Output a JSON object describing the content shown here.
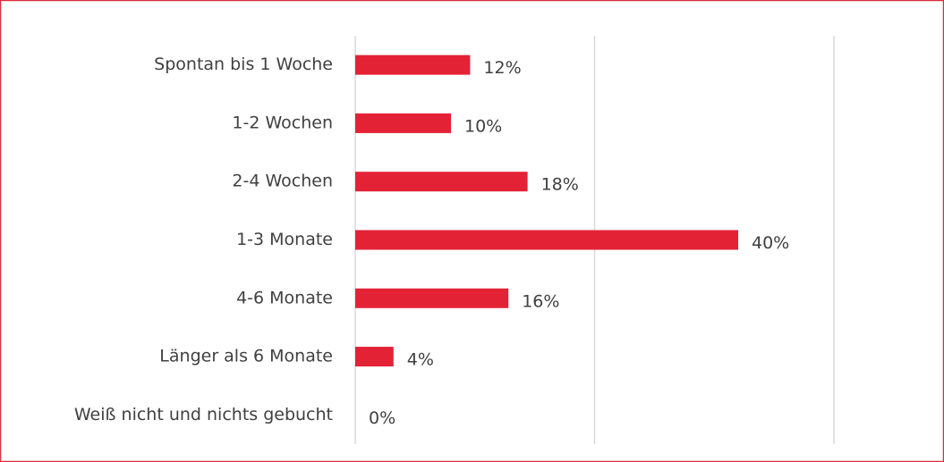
{
  "chart_data": {
    "type": "bar",
    "orientation": "horizontal",
    "categories": [
      "Spontan bis 1 Woche",
      "1-2 Wochen",
      "2-4 Wochen",
      "1-3 Monate",
      "4-6 Monate",
      "Länger als 6 Monate",
      "Weiß nicht und nichts gebucht"
    ],
    "values": [
      12,
      10,
      18,
      40,
      16,
      4,
      0
    ],
    "value_labels": [
      "12%",
      "10%",
      "18%",
      "40%",
      "16%",
      "4%",
      "0%"
    ],
    "color": "#e32236",
    "xlim": [
      0,
      50
    ],
    "xticks": [
      0,
      25,
      50
    ],
    "grid": true
  }
}
